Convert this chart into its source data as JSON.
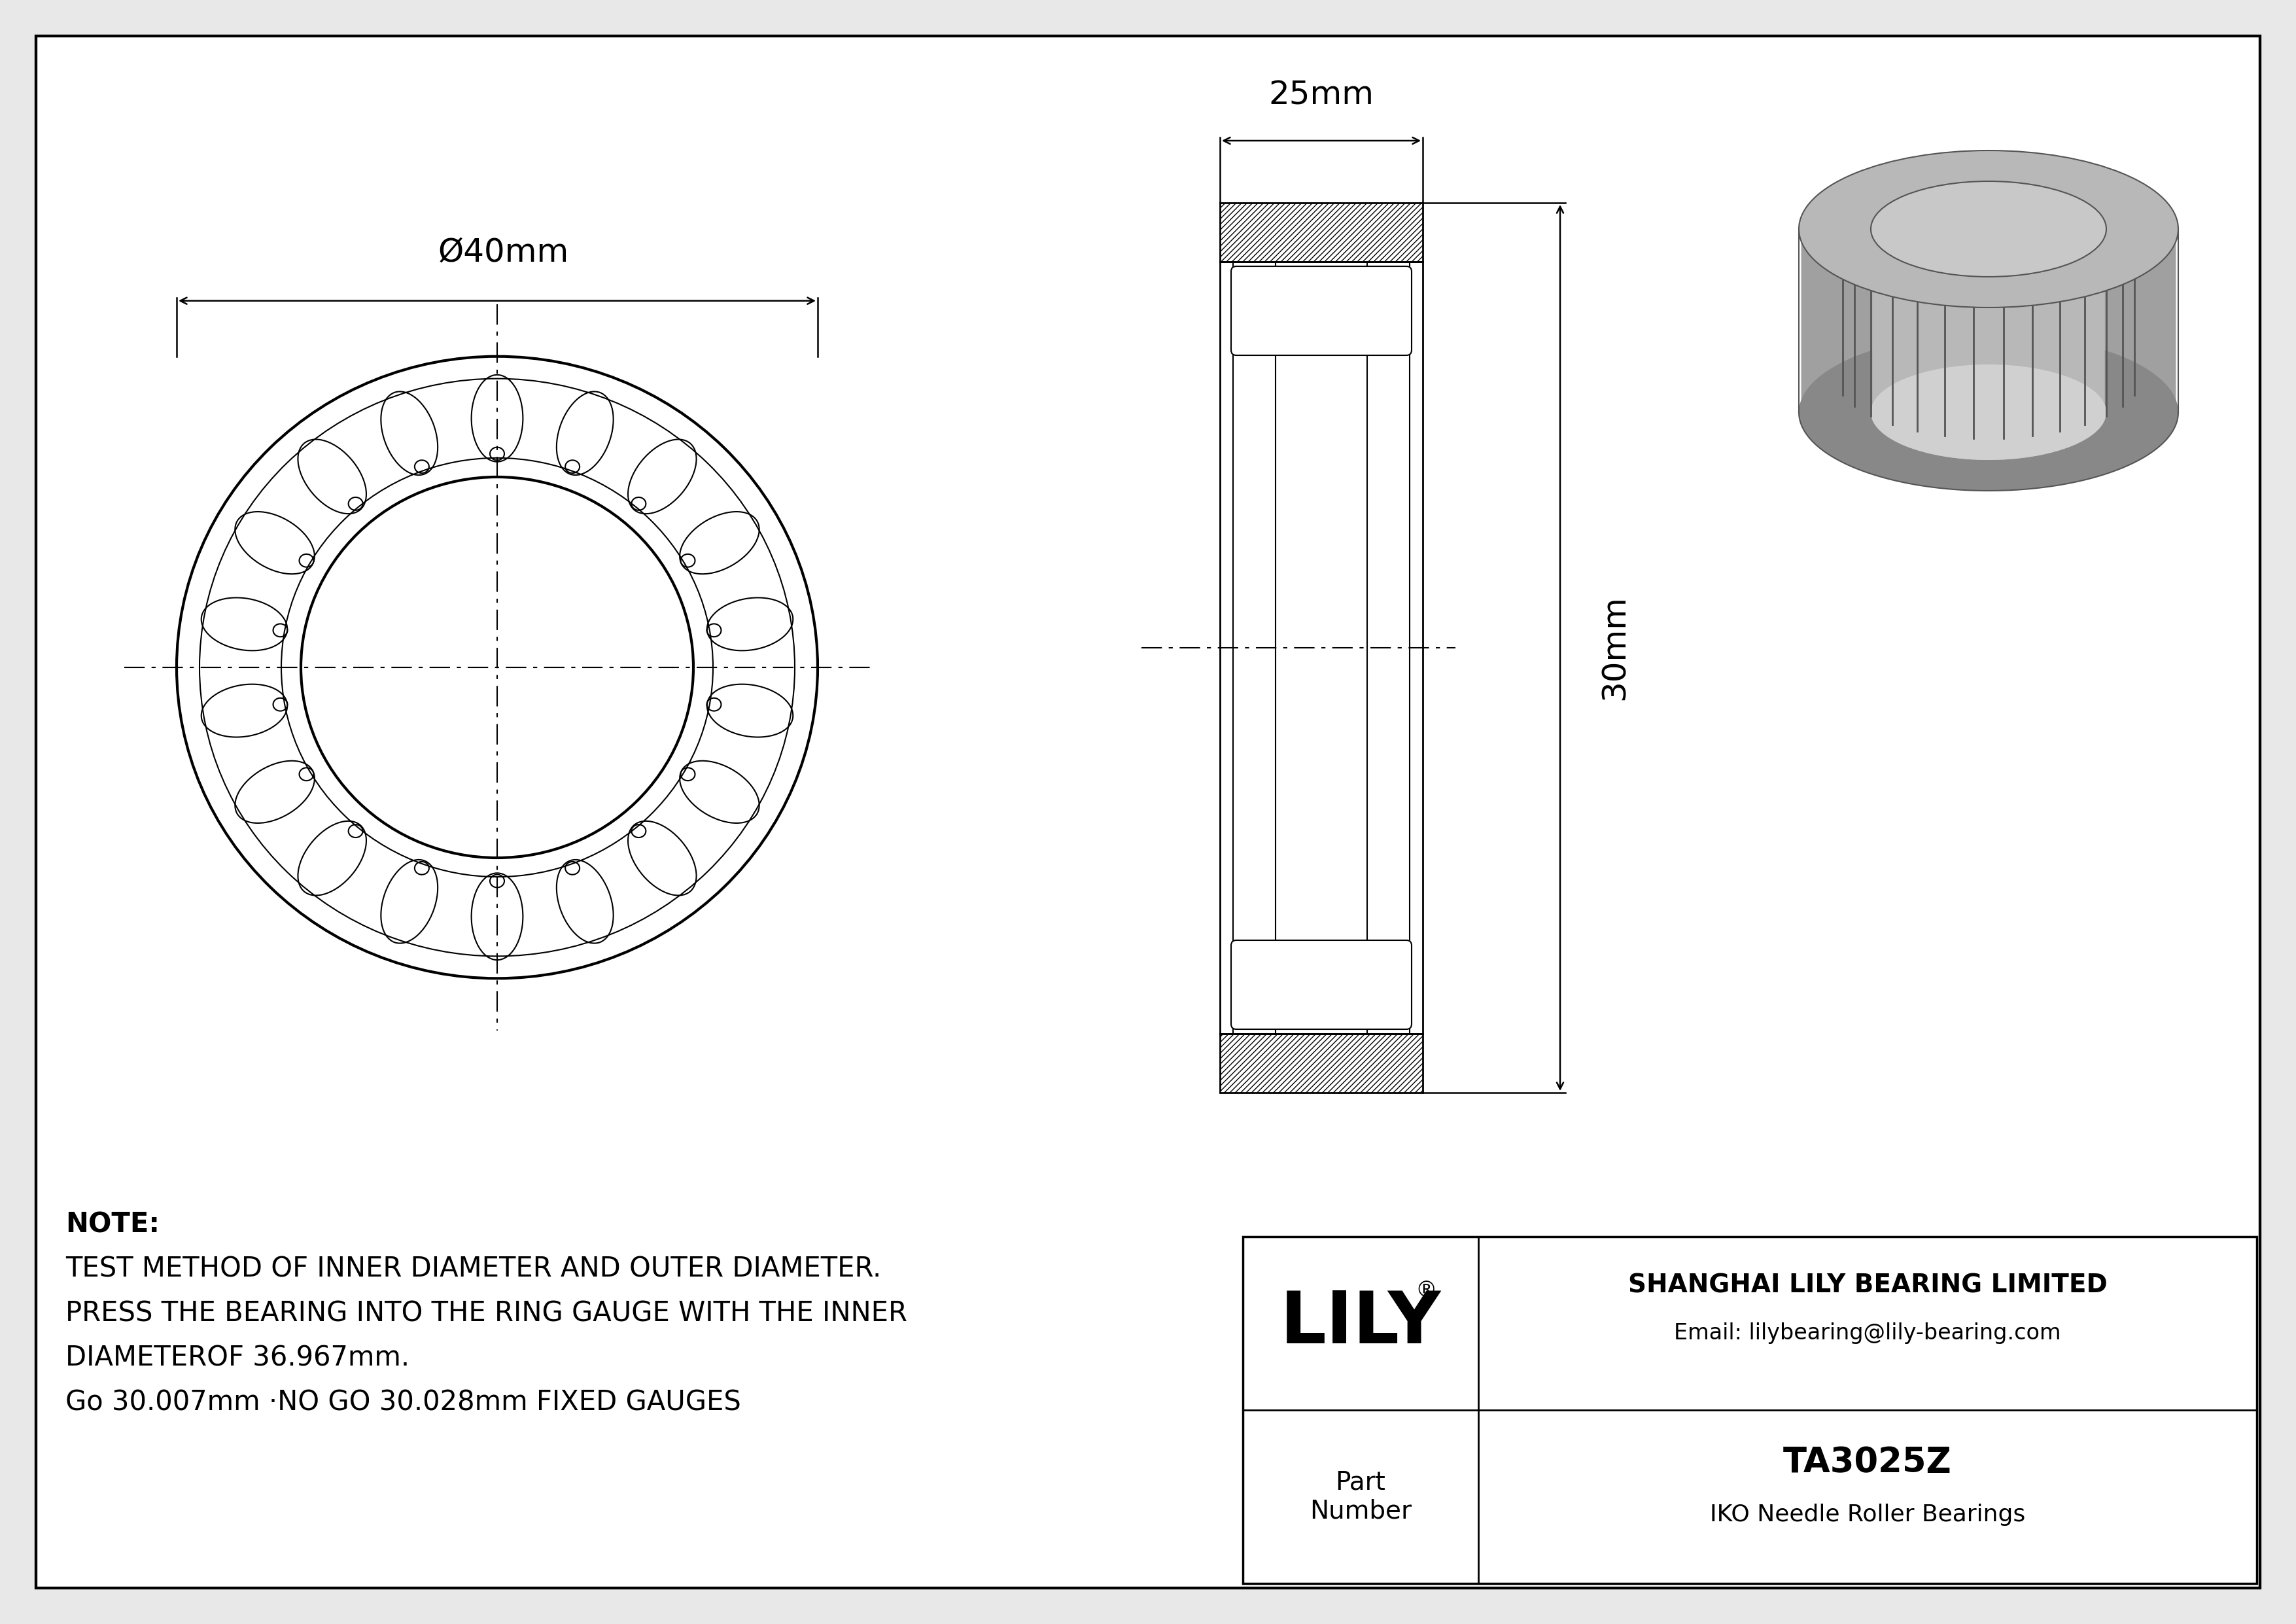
{
  "bg_color": "#e8e8e8",
  "drawing_bg": "#ffffff",
  "line_color": "#000000",
  "border_color": "#000000",
  "gray_3d_light": "#b0b0b0",
  "gray_3d_mid": "#909090",
  "gray_3d_dark": "#787878",
  "note_line1": "NOTE:",
  "note_line2": "TEST METHOD OF INNER DIAMETER AND OUTER DIAMETER.",
  "note_line3": "PRESS THE BEARING INTO THE RING GAUGE WITH THE INNER",
  "note_line4": "DIAMETEROF 36.967mm.",
  "note_line5": "Go 30.007mm ·NO GO 30.028mm FIXED GAUGES",
  "dim_outer": "Ø40mm",
  "dim_width": "25mm",
  "dim_height": "30mm",
  "lily_company": "SHANGHAI LILY BEARING LIMITED",
  "lily_email": "Email: lilybearing@lily-bearing.com",
  "part_label": "Part\nNumber",
  "part_number": "TA3025Z",
  "part_type": "IKO Needle Roller Bearings",
  "lily_logo": "LILY"
}
